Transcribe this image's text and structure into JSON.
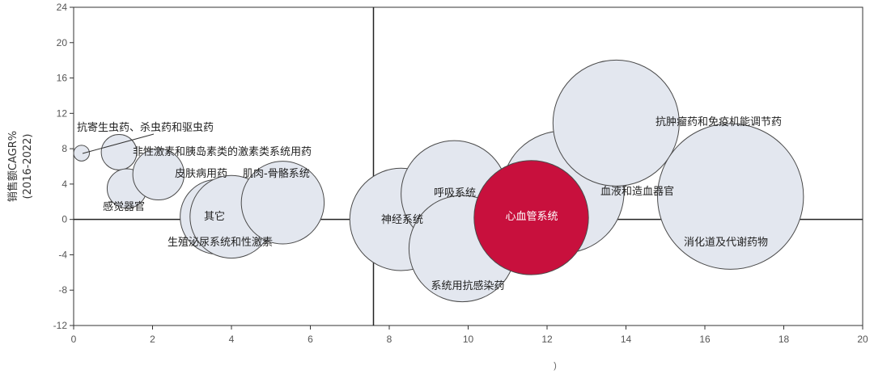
{
  "chart_data": {
    "type": "scatter",
    "subtype": "bubble",
    "ylabel": "销售额CAGR%",
    "ylabel_sub": "(2016-2022)",
    "xlabel": "",
    "x_caption": ")",
    "xlim": [
      0,
      20
    ],
    "ylim": [
      -12,
      24
    ],
    "x_ticks": [
      0,
      2,
      4,
      6,
      8,
      10,
      12,
      14,
      16,
      18,
      20
    ],
    "y_ticks": [
      24,
      20,
      16,
      12,
      8,
      4,
      0,
      -4,
      -8,
      -12
    ],
    "quadrant_lines": {
      "x": 7.6,
      "y": 0
    },
    "grid": false,
    "colors": {
      "bubble_fill": "#e3e7ef",
      "bubble_stroke": "#4a4a4a",
      "highlight_fill": "#c8103d"
    },
    "bubbles": [
      {
        "label": "抗寄生虫药、杀虫药和驱虫药",
        "x": 0.2,
        "y": 7.5,
        "size": 0.2
      },
      {
        "label": "非性激素和胰岛素类的激素类系统用药",
        "x": 1.15,
        "y": 7.6,
        "size": 0.45
      },
      {
        "label": "感觉器官",
        "x": 1.35,
        "y": 3.5,
        "size": 0.5
      },
      {
        "label": "皮肤病用药",
        "x": 2.15,
        "y": 5.1,
        "size": 0.65
      },
      {
        "label": "其它",
        "x": 3.65,
        "y": 0.3,
        "size": 0.95
      },
      {
        "label": "",
        "x": 4.0,
        "y": 0.3,
        "size": 1.05
      },
      {
        "label": "生殖泌尿系统和性激素",
        "x": 4.0,
        "y": 0.3,
        "size": 0
      },
      {
        "label": "肌肉-骨骼系统",
        "x": 5.3,
        "y": 1.9,
        "size": 1.05
      },
      {
        "label": "神经系统",
        "x": 8.3,
        "y": 0.0,
        "size": 1.3
      },
      {
        "label": "呼吸系统",
        "x": 9.65,
        "y": 2.9,
        "size": 1.35
      },
      {
        "label": "系统用抗感染药",
        "x": 9.85,
        "y": -3.3,
        "size": 1.35
      },
      {
        "label": "血液和造血器官",
        "x": 12.4,
        "y": 3.1,
        "size": 1.55
      },
      {
        "label": "心血管系统",
        "x": 11.6,
        "y": 0.2,
        "size": 1.45,
        "highlight": true
      },
      {
        "label": "抗肿瘤药和免疫机能调节药",
        "x": 13.75,
        "y": 10.9,
        "size": 1.6
      },
      {
        "label": "消化道及代谢药物",
        "x": 16.65,
        "y": 2.6,
        "size": 1.85
      }
    ]
  }
}
